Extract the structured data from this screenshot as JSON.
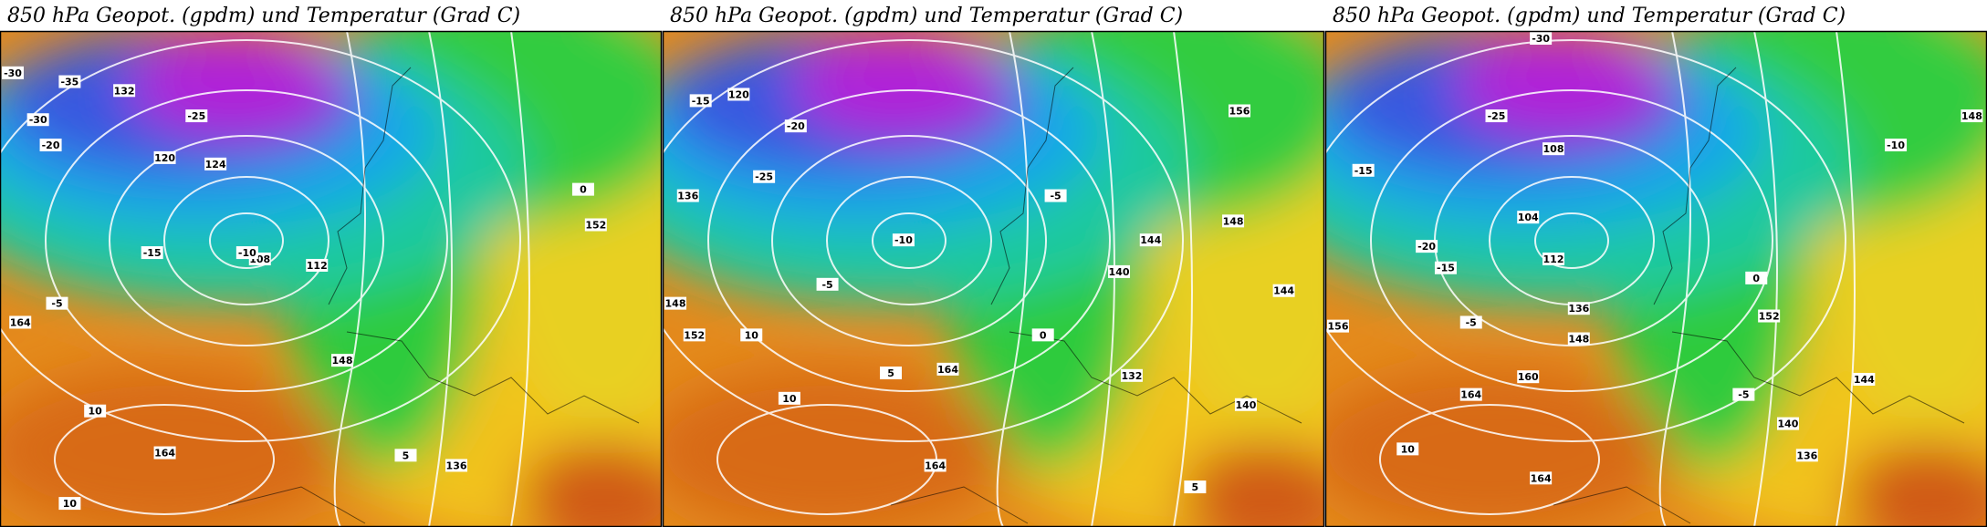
{
  "panels": [
    {
      "title": "850 hPa Geopot. (gpdm) und Temperatur (Grad C)",
      "labels": [
        "-30",
        "-35",
        "132",
        "-30",
        "-25",
        "-20",
        "120",
        "124",
        "-15",
        "108",
        "112",
        "-10",
        "-5",
        "164",
        "10",
        "164",
        "148",
        "136",
        "152",
        "0",
        "5",
        "10"
      ]
    },
    {
      "title": "850 hPa Geopot. (gpdm) und Temperatur (Grad C)",
      "labels": [
        "-15",
        "136",
        "-25",
        "-20",
        "120",
        "-10",
        "-5",
        "148",
        "152",
        "10",
        "5",
        "164",
        "10",
        "164",
        "0",
        "140",
        "144",
        "-5",
        "132",
        "5",
        "140",
        "144",
        "148",
        "156"
      ]
    },
    {
      "title": "850 hPa Geopot. (gpdm) und Temperatur (Grad C)",
      "labels": [
        "-15",
        "-25",
        "-30",
        "108",
        "104",
        "-20",
        "-15",
        "112",
        "136",
        "148",
        "-5",
        "156",
        "160",
        "164",
        "10",
        "164",
        "0",
        "152",
        "-5",
        "140",
        "136",
        "144",
        "148",
        "-10"
      ]
    }
  ]
}
